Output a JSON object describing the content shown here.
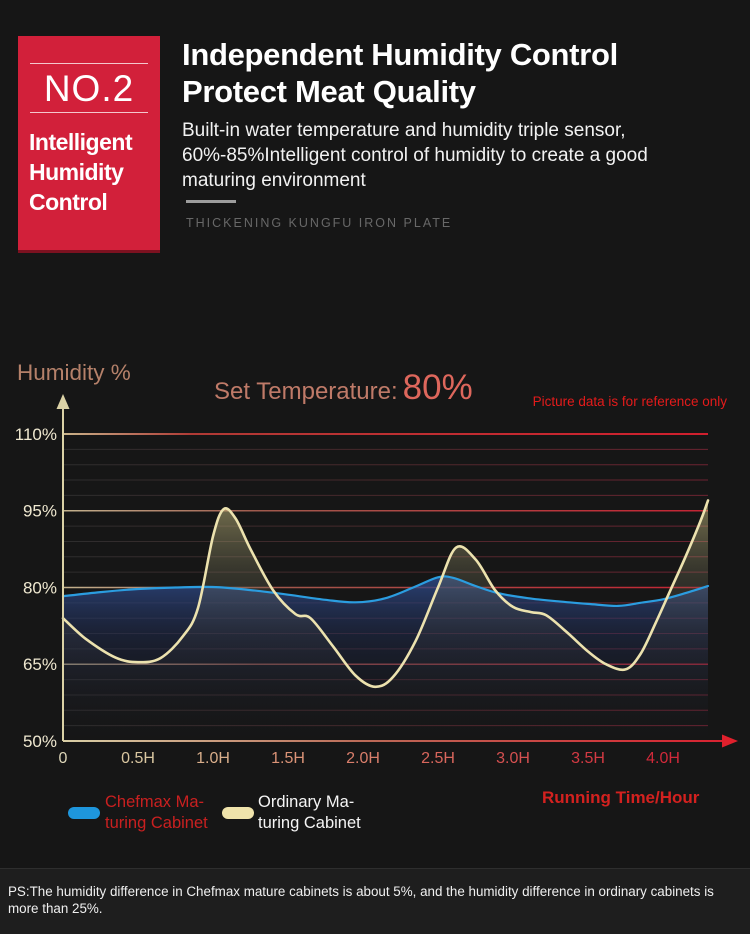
{
  "header": {
    "badge_number": "NO.2",
    "badge_title": "Intelligent Humidity Control",
    "title": "Independent Humidity Control\nProtect Meat Quality",
    "description": "Built-in water temperature and humidity triple sensor,\n60%-85%Intelligent control of humidity to create a good\nmaturing environment",
    "watermark": "THICKENING KUNGFU IRON PLATE"
  },
  "chart": {
    "y_axis_title": "Humidity %",
    "set_temperature_label": "Set Temperature:",
    "set_temperature_value": "80%",
    "disclaimer": "Picture data is for reference only",
    "x_axis_title": "Running Time/Hour"
  },
  "legend": {
    "chefmax": {
      "label": "Chefmax Ma-\nturing Cabinet",
      "color": "#1e96dc"
    },
    "ordinary": {
      "label": "Ordinary Ma-\nturing Cabinet",
      "color": "#efe3ab"
    }
  },
  "footer": {
    "note": "PS:The humidity difference in Chefmax mature cabinets is about 5%, and the humidity difference in ordinary cabinets is more than 25%."
  },
  "colors": {
    "badge_red": "#d2203a",
    "chart_red": "#d42430",
    "chefmax_line": "#2b9de0",
    "ordinary_line": "#ece2ae"
  },
  "chart_data": {
    "type": "line",
    "title": "Set Temperature: 80%",
    "xlabel": "Running Time/Hour",
    "ylabel": "Humidity %",
    "xlim": [
      0,
      4.3
    ],
    "ylim": [
      50,
      113
    ],
    "grid": "minor horizontal lines every 3%, major every 15%",
    "legend_position": "bottom-left",
    "x_ticks": [
      "0",
      "0.5H",
      "1.0H",
      "1.5H",
      "2.0H",
      "2.5H",
      "3.0H",
      "3.5H",
      "4.0H"
    ],
    "x_tick_values": [
      0,
      0.5,
      1.0,
      1.5,
      2.0,
      2.5,
      3.0,
      3.5,
      4.0
    ],
    "y_ticks": [
      "110%",
      "95%",
      "80%",
      "65%",
      "50%"
    ],
    "y_tick_values": [
      110,
      95,
      80,
      65,
      50
    ],
    "series": [
      {
        "name": "Chefmax Maturing Cabinet",
        "color": "#2b9de0",
        "points": [
          [
            0,
            78.3
          ],
          [
            0.25,
            79.1
          ],
          [
            0.5,
            79.7
          ],
          [
            0.75,
            80.0
          ],
          [
            1.0,
            80.1
          ],
          [
            1.25,
            79.5
          ],
          [
            1.5,
            78.6
          ],
          [
            1.75,
            77.6
          ],
          [
            1.95,
            77.1
          ],
          [
            2.15,
            77.9
          ],
          [
            2.35,
            80.2
          ],
          [
            2.5,
            82.0
          ],
          [
            2.6,
            81.9
          ],
          [
            2.75,
            80.3
          ],
          [
            2.9,
            78.9
          ],
          [
            3.1,
            77.9
          ],
          [
            3.3,
            77.3
          ],
          [
            3.5,
            76.8
          ],
          [
            3.7,
            76.4
          ],
          [
            3.85,
            77.0
          ],
          [
            4.0,
            77.7
          ],
          [
            4.15,
            78.9
          ],
          [
            4.3,
            80.3
          ]
        ]
      },
      {
        "name": "Ordinary Maturing Cabinet",
        "color": "#ece2ae",
        "points": [
          [
            0,
            74
          ],
          [
            0.15,
            70
          ],
          [
            0.35,
            66.3
          ],
          [
            0.5,
            65.4
          ],
          [
            0.65,
            66.2
          ],
          [
            0.8,
            70.5
          ],
          [
            0.9,
            76
          ],
          [
            1.0,
            90
          ],
          [
            1.07,
            95.3
          ],
          [
            1.15,
            93.5
          ],
          [
            1.25,
            87.5
          ],
          [
            1.4,
            79.5
          ],
          [
            1.55,
            74.8
          ],
          [
            1.65,
            74
          ],
          [
            1.8,
            68.5
          ],
          [
            1.95,
            62.8
          ],
          [
            2.08,
            60.6
          ],
          [
            2.2,
            62.5
          ],
          [
            2.35,
            69.5
          ],
          [
            2.5,
            80
          ],
          [
            2.62,
            87.8
          ],
          [
            2.75,
            85.5
          ],
          [
            2.88,
            79.5
          ],
          [
            3.0,
            76.2
          ],
          [
            3.12,
            75.2
          ],
          [
            3.22,
            74.6
          ],
          [
            3.35,
            71.5
          ],
          [
            3.5,
            67.5
          ],
          [
            3.62,
            65
          ],
          [
            3.75,
            64
          ],
          [
            3.85,
            67
          ],
          [
            3.95,
            73
          ],
          [
            4.05,
            79.5
          ],
          [
            4.15,
            86
          ],
          [
            4.25,
            93
          ],
          [
            4.3,
            97
          ]
        ]
      }
    ]
  }
}
